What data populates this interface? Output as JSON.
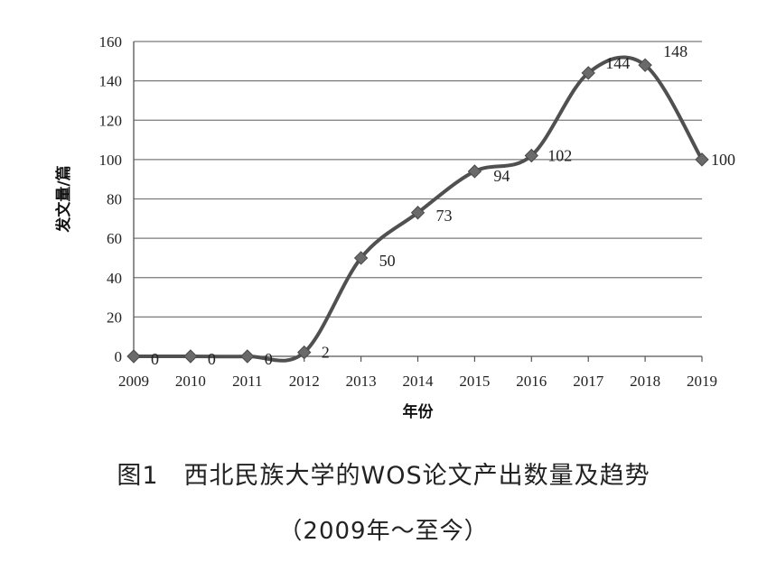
{
  "figure": {
    "title": "图1　西北民族大学的WOS论文产出数量及趋势",
    "subtitle": "（2009年～至今）"
  },
  "chart_data": {
    "type": "line",
    "x": [
      "2009",
      "2010",
      "2011",
      "2012",
      "2013",
      "2014",
      "2015",
      "2016",
      "2017",
      "2018",
      "2019"
    ],
    "series": [
      {
        "values": [
          0,
          0,
          0,
          2,
          50,
          73,
          94,
          102,
          144,
          148,
          100
        ]
      }
    ],
    "data_labels": [
      "0",
      "0",
      "0",
      "2",
      "50",
      "73",
      "94",
      "102",
      "144",
      "148",
      "100"
    ],
    "xlabel": "年份",
    "ylabel": "发文量/篇",
    "ylim": [
      0,
      160
    ],
    "yticks": [
      "0",
      "20",
      "40",
      "60",
      "80",
      "100",
      "120",
      "140",
      "160"
    ],
    "grid": true,
    "marker": "diamond",
    "smooth": true,
    "line_color": "#505050",
    "grid_color": "#7a7a7a"
  }
}
